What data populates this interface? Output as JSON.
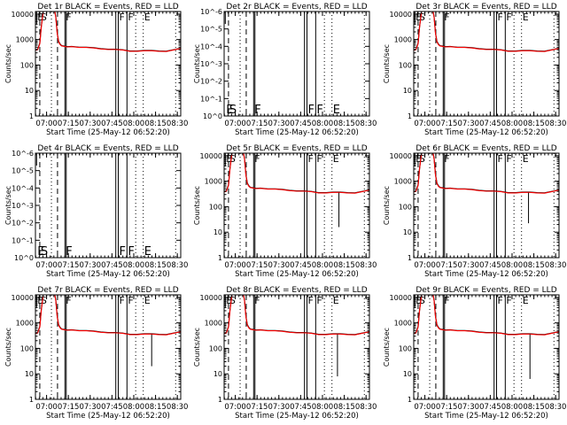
{
  "chart_data": {
    "type": "line",
    "grid": false,
    "legend_placement": "none",
    "colors": {
      "events": "#000000",
      "lld": "#ff0000",
      "axes": "#000000"
    },
    "xlabel": "Start Time (25-May-12 06:52:20)",
    "ylabel": "Counts/sec",
    "x_ticks": [
      "07:00",
      "07:15",
      "07:30",
      "07:45",
      "08:00",
      "08:15",
      "08:30"
    ],
    "x_tick_minutes": [
      7.67,
      22.67,
      37.67,
      52.67,
      67.67,
      82.67,
      97.67
    ],
    "xlim_minutes": [
      0,
      100
    ],
    "count_y_ticks": [
      "1",
      "10",
      "100",
      "1000",
      "10000"
    ],
    "count_ylim_log10": [
      0,
      4.1
    ],
    "flat_y_ticks": [
      "10^-6",
      "10^-5",
      "10^-4",
      "10^-3",
      "10^-2",
      "10^-1",
      "10^0"
    ],
    "flat_ylim_log10": [
      -6,
      0
    ],
    "flat_ymax_label": "10^-6",
    "events_series": {
      "name": "Events",
      "x": [
        0,
        1.5,
        3,
        4,
        5,
        5.5,
        6,
        8,
        10,
        12,
        13,
        14,
        15,
        16,
        17,
        18,
        20,
        22,
        25,
        30,
        35,
        40,
        45,
        50,
        55,
        60,
        65,
        70,
        75,
        80,
        85,
        90,
        95,
        100
      ],
      "y": [
        2.6,
        2.62,
        2.85,
        3.5,
        3.95,
        4.2,
        4.25,
        4.25,
        4.25,
        4.25,
        4.2,
        3.9,
        3.25,
        2.92,
        2.82,
        2.76,
        2.74,
        2.72,
        2.73,
        2.7,
        2.7,
        2.68,
        2.64,
        2.62,
        2.62,
        2.6,
        2.55,
        2.55,
        2.57,
        2.57,
        2.55,
        2.54,
        2.6,
        2.66
      ]
    },
    "lld_series": {
      "name": "LLD",
      "x": [
        0,
        1.5,
        3,
        4,
        5,
        5.5,
        6,
        8,
        10,
        12,
        13,
        14,
        15,
        16,
        17,
        18,
        20,
        22,
        25,
        30,
        35,
        40,
        45,
        50,
        55,
        60,
        65,
        70,
        75,
        80,
        85,
        90,
        95,
        100
      ],
      "y": [
        2.58,
        2.6,
        2.83,
        3.48,
        3.93,
        4.2,
        4.25,
        4.25,
        4.25,
        4.25,
        4.2,
        3.88,
        3.23,
        2.9,
        2.8,
        2.75,
        2.73,
        2.71,
        2.72,
        2.69,
        2.69,
        2.67,
        2.63,
        2.61,
        2.61,
        2.59,
        2.54,
        2.54,
        2.56,
        2.56,
        2.54,
        2.53,
        2.59,
        2.65
      ]
    },
    "markers": [
      {
        "x": 3.0,
        "style": "dashed",
        "label": "S"
      },
      {
        "x": 0.8,
        "style": "solid-short",
        "label": "E"
      },
      {
        "x": 11.0,
        "style": "dotted",
        "label": ""
      },
      {
        "x": 15.2,
        "style": "dashed",
        "label": ""
      },
      {
        "x": 20.3,
        "style": "solid",
        "label": "F"
      },
      {
        "x": 21.2,
        "style": "solid",
        "label": ""
      },
      {
        "x": 55.3,
        "style": "solid",
        "label": ""
      },
      {
        "x": 57.0,
        "style": "solid",
        "label": "F"
      },
      {
        "x": 63.0,
        "style": "solid",
        "label": "F"
      },
      {
        "x": 69.0,
        "style": "dotted",
        "label": ""
      },
      {
        "x": 74.2,
        "style": "dotted",
        "label": "E"
      },
      {
        "x": 96.5,
        "style": "dotted",
        "label": ""
      }
    ],
    "panels": [
      {
        "title": "Det 1r BLACK = Events, RED = LLD",
        "kind": "counts",
        "spike": null
      },
      {
        "title": "Det 2r BLACK = Events, RED = LLD",
        "kind": "flat",
        "spike": null
      },
      {
        "title": "Det 3r BLACK = Events, RED = LLD",
        "kind": "counts",
        "spike": null
      },
      {
        "title": "Det 4r BLACK = Events, RED = LLD",
        "kind": "flat",
        "spike": null
      },
      {
        "title": "Det 5r BLACK = Events, RED = LLD",
        "kind": "counts",
        "spike": {
          "x": 79,
          "ylog": 1.2
        }
      },
      {
        "title": "Det 6r BLACK = Events, RED = LLD",
        "kind": "counts",
        "spike": {
          "x": 79,
          "ylog": 1.35
        }
      },
      {
        "title": "Det 7r BLACK = Events, RED = LLD",
        "kind": "counts",
        "spike": {
          "x": 80,
          "ylog": 1.3
        }
      },
      {
        "title": "Det 8r BLACK = Events, RED = LLD",
        "kind": "counts",
        "spike": {
          "x": 78,
          "ylog": 0.9
        }
      },
      {
        "title": "Det 9r BLACK = Events, RED = LLD",
        "kind": "counts",
        "spike": {
          "x": 80,
          "ylog": 0.8
        }
      }
    ]
  }
}
